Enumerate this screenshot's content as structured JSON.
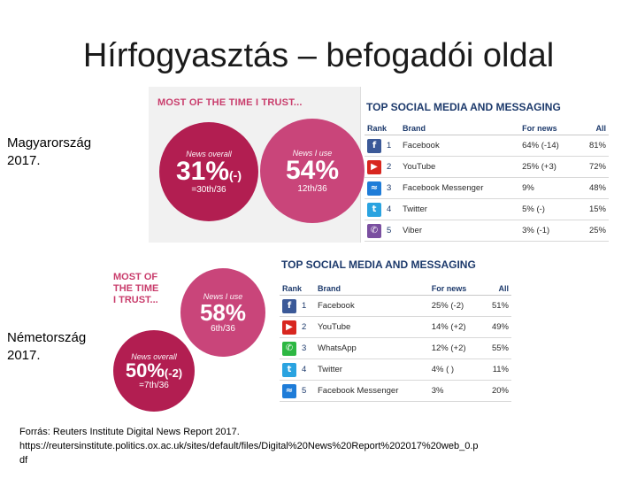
{
  "slide": {
    "title": "Hírfogyasztás – befogadói oldal"
  },
  "hungary": {
    "label_country": "Magyarország",
    "label_year": "2017.",
    "trust_banner": "MOST OF THE TIME I TRUST...",
    "news_overall": {
      "label": "News overall",
      "value": "31%",
      "change": "(-)",
      "rank": "=30th/36"
    },
    "news_i_use": {
      "label": "News I use",
      "value": "54%",
      "rank": "12th/36"
    },
    "table": {
      "title": "TOP SOCIAL MEDIA AND MESSAGING",
      "headers": {
        "rank": "Rank",
        "brand": "Brand",
        "for_news": "For news",
        "all": "All"
      },
      "rows": [
        {
          "icon": "facebook-icon",
          "glyph": "f",
          "color": "#3b5998",
          "rank": "1",
          "brand": "Facebook",
          "for_news": "64%  (-14)",
          "all": "81%"
        },
        {
          "icon": "youtube-icon",
          "glyph": "▶",
          "color": "#d8261f",
          "rank": "2",
          "brand": "YouTube",
          "for_news": "25%  (+3)",
          "all": "72%"
        },
        {
          "icon": "messenger-icon",
          "glyph": "≈",
          "color": "#1e7cd8",
          "rank": "3",
          "brand": "Facebook Messenger",
          "for_news": "9%",
          "all": "48%"
        },
        {
          "icon": "twitter-icon",
          "glyph": "t",
          "color": "#2aa3e0",
          "rank": "4",
          "brand": "Twitter",
          "for_news": "5%  (-)",
          "all": "15%"
        },
        {
          "icon": "viber-icon",
          "glyph": "✆",
          "color": "#7a4fa0",
          "rank": "5",
          "brand": "Viber",
          "for_news": "3%  (-1)",
          "all": "25%"
        }
      ]
    }
  },
  "germany": {
    "label_country": "Németország",
    "label_year": "2017.",
    "trust_lines": [
      "MOST OF",
      "THE TIME",
      "I TRUST..."
    ],
    "news_i_use": {
      "label": "News I use",
      "value": "58%",
      "rank": "6th/36"
    },
    "news_overall": {
      "label": "News overall",
      "value": "50%",
      "change": "(-2)",
      "rank": "=7th/36"
    },
    "table": {
      "title": "TOP SOCIAL MEDIA AND MESSAGING",
      "headers": {
        "rank": "Rank",
        "brand": "Brand",
        "for_news": "For news",
        "all": "All"
      },
      "rows": [
        {
          "icon": "facebook-icon",
          "glyph": "f",
          "color": "#3b5998",
          "rank": "1",
          "brand": "Facebook",
          "for_news": "25%  (-2)",
          "all": "51%"
        },
        {
          "icon": "youtube-icon",
          "glyph": "▶",
          "color": "#d8261f",
          "rank": "2",
          "brand": "YouTube",
          "for_news": "14%  (+2)",
          "all": "49%"
        },
        {
          "icon": "whatsapp-icon",
          "glyph": "✆",
          "color": "#2db742",
          "rank": "3",
          "brand": "WhatsApp",
          "for_news": "12%  (+2)",
          "all": "55%"
        },
        {
          "icon": "twitter-icon",
          "glyph": "t",
          "color": "#2aa3e0",
          "rank": "4",
          "brand": "Twitter",
          "for_news": "4%  ( )",
          "all": "11%"
        },
        {
          "icon": "messenger-icon",
          "glyph": "≈",
          "color": "#1e7cd8",
          "rank": "5",
          "brand": "Facebook Messenger",
          "for_news": "3%",
          "all": "20%"
        }
      ]
    }
  },
  "source": {
    "line1": "Forrás: Reuters Institute Digital News Report  2017.",
    "line2": "https://reutersinstitute.politics.ox.ac.uk/sites/default/files/Digital%20News%20Report%202017%20web_0.p",
    "line3": "df"
  }
}
